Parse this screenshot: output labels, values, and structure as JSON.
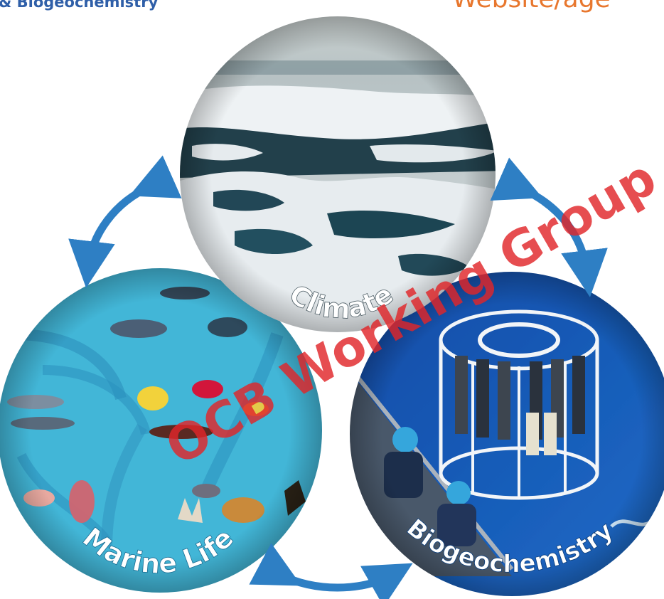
{
  "header": {
    "org_text": "& Biogeochemistry",
    "website_text": "Website/age"
  },
  "diagram": {
    "nodes": {
      "climate": {
        "label": "Climate",
        "photo": "sea-ice-aerial-photo"
      },
      "marine_life": {
        "label": "Marine Life",
        "photo": "marine-food-web-illustration"
      },
      "biogeochemistry": {
        "label": "Biogeochemistry",
        "photo": "ctd-rosette-sampler-photo"
      }
    },
    "arrows": [
      "climate-marine-life",
      "climate-biogeochemistry",
      "marine-life-biogeochemistry"
    ],
    "watermark": "OCB Working Group"
  },
  "colors": {
    "arrow": "#2e7fc4",
    "org_text": "#2f5fa8",
    "website_text": "#e8772e",
    "watermark": "#e0262a",
    "ocean_deep": "#1d5fb0",
    "marine_bg": "#46b8d8",
    "ice": "#e9eef1"
  }
}
